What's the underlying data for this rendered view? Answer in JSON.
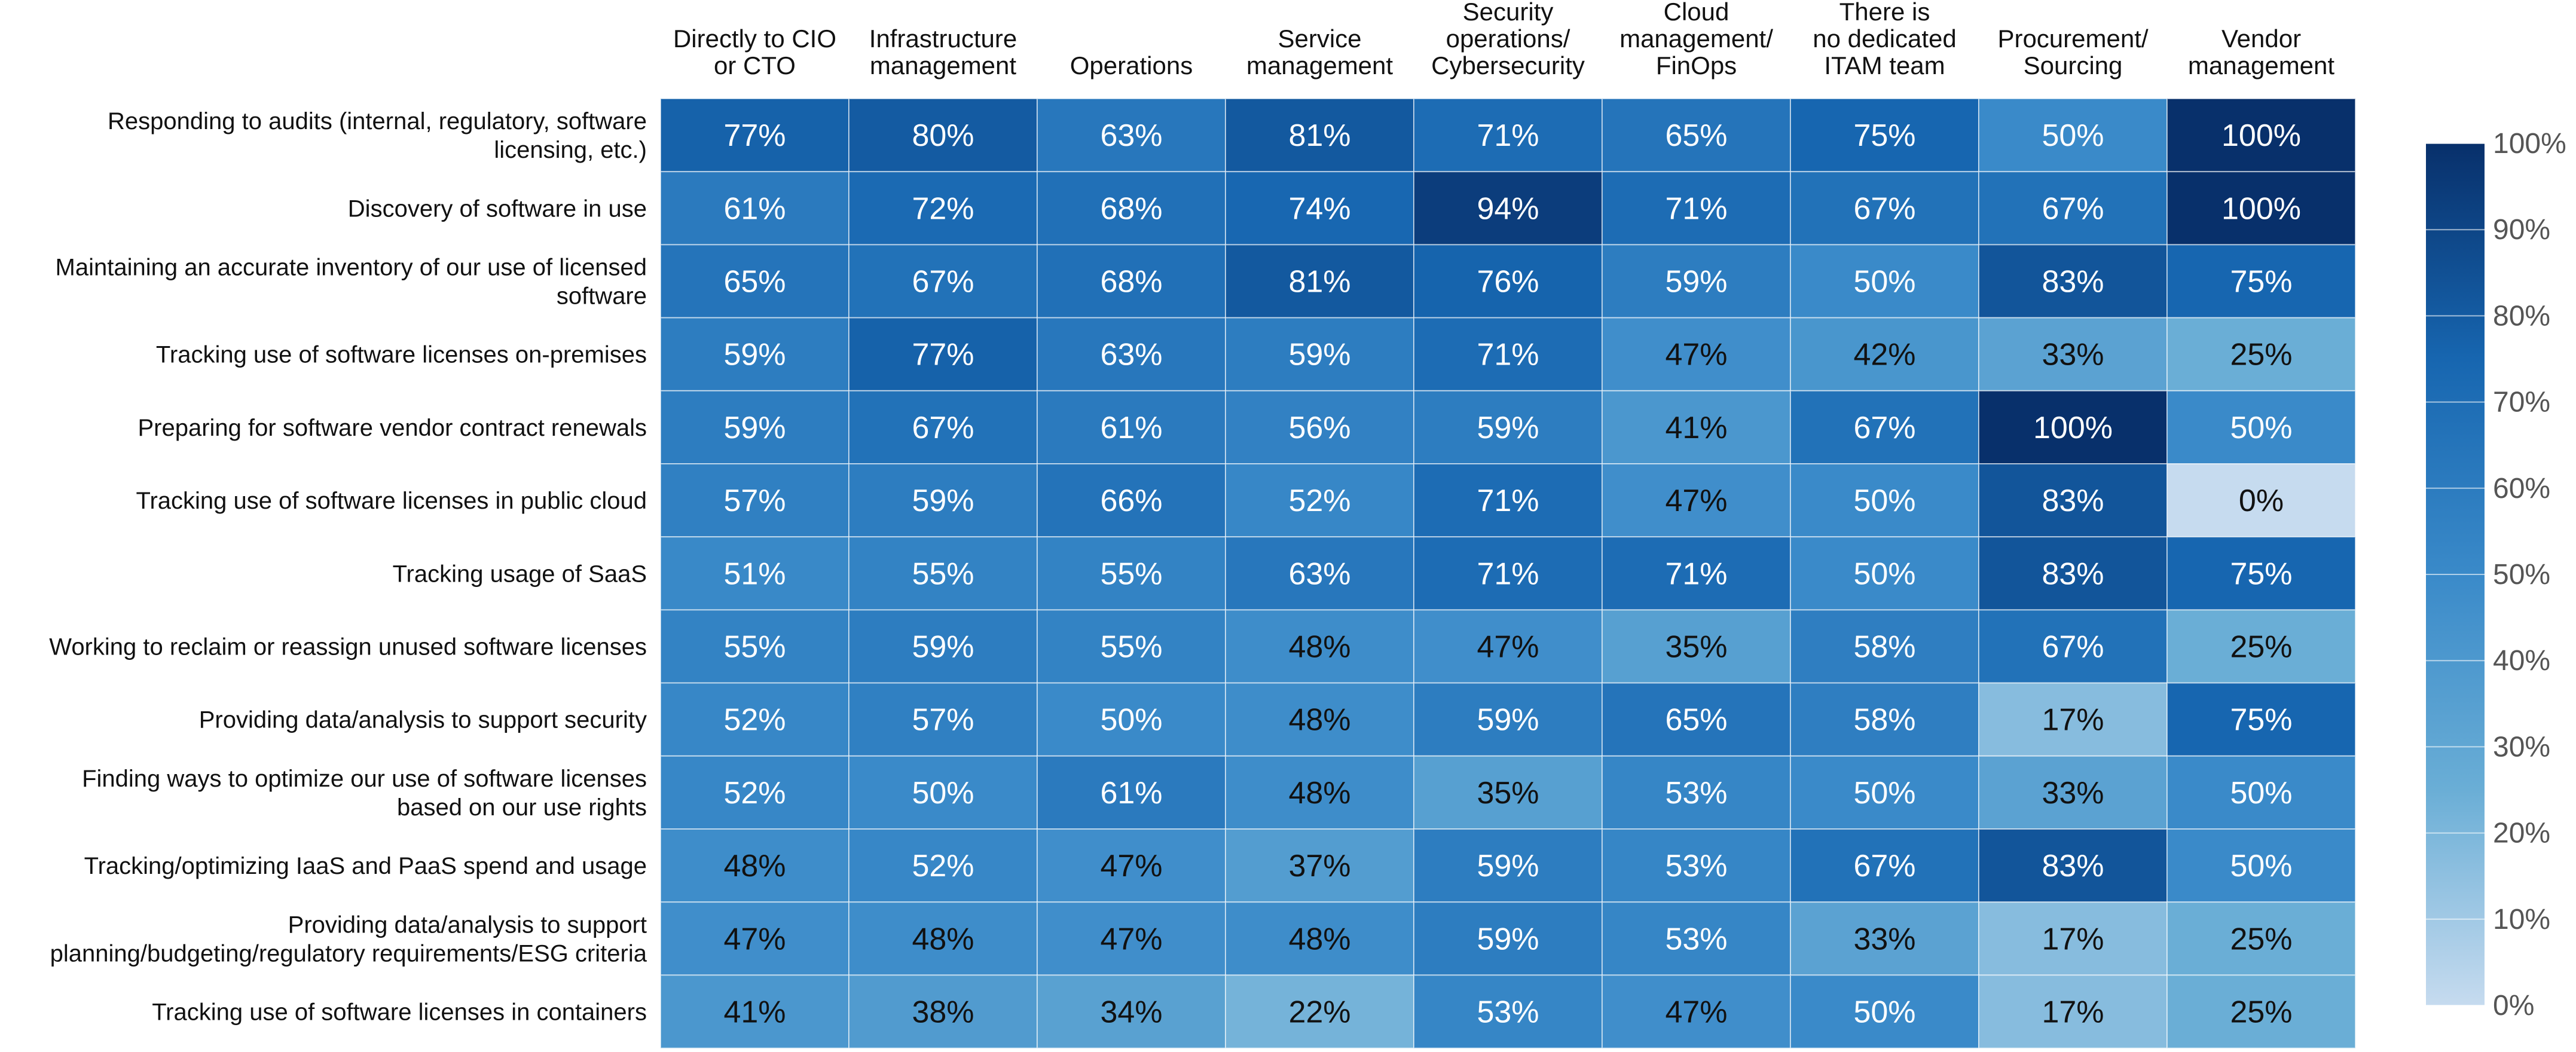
{
  "chart_data": {
    "type": "heatmap",
    "title": "",
    "columns": [
      "Directly to CIO or CTO",
      "Infrastructure management",
      "Operations",
      "Service management",
      "Security operations/ Cybersecurity",
      "Cloud management/ FinOps",
      "There is no dedicated ITAM team",
      "Procurement/ Sourcing",
      "Vendor management"
    ],
    "column_label_lines": [
      [
        "Directly to CIO",
        "or CTO"
      ],
      [
        "Infrastructure",
        "management"
      ],
      [
        "Operations"
      ],
      [
        "Service",
        "management"
      ],
      [
        "Security",
        "operations/",
        "Cybersecurity"
      ],
      [
        "Cloud",
        "management/",
        "FinOps"
      ],
      [
        "There is",
        "no dedicated",
        "ITAM team"
      ],
      [
        "Procurement/",
        "Sourcing"
      ],
      [
        "Vendor",
        "management"
      ]
    ],
    "rows": [
      "Responding to audits (internal, regulatory, software licensing, etc.)",
      "Discovery of software in use",
      "Maintaining an accurate inventory of our use of licensed software",
      "Tracking use of software licenses on-premises",
      "Preparing for software vendor contract renewals",
      "Tracking use of software licenses in public cloud",
      "Tracking usage of SaaS",
      "Working to reclaim or reassign unused software licenses",
      "Providing data/analysis to support security",
      "Finding ways to optimize our use of software licenses based on our use rights",
      "Tracking/optimizing IaaS and PaaS spend and usage",
      "Providing data/analysis to support planning/budgeting/regulatory requirements/ESG criteria",
      "Tracking use of software licenses in containers"
    ],
    "row_label_lines": [
      [
        "Responding to audits (internal, regulatory, software",
        "licensing, etc.)"
      ],
      [
        "Discovery of software in use"
      ],
      [
        "Maintaining an accurate inventory of our use of licensed",
        "software"
      ],
      [
        "Tracking use of software licenses on-premises"
      ],
      [
        "Preparing for software vendor contract renewals"
      ],
      [
        "Tracking use of software licenses in public cloud"
      ],
      [
        "Tracking usage of SaaS"
      ],
      [
        "Working to reclaim or reassign unused software licenses"
      ],
      [
        "Providing data/analysis to support security"
      ],
      [
        "Finding ways to optimize our use of software licenses",
        "based on our use rights"
      ],
      [
        "Tracking/optimizing IaaS and PaaS spend and usage"
      ],
      [
        "Providing data/analysis to support",
        "planning/budgeting/regulatory requirements/ESG criteria"
      ],
      [
        "Tracking use of software licenses in containers"
      ]
    ],
    "values": [
      [
        77,
        80,
        63,
        81,
        71,
        65,
        75,
        50,
        100
      ],
      [
        61,
        72,
        68,
        74,
        94,
        71,
        67,
        67,
        100
      ],
      [
        65,
        67,
        68,
        81,
        76,
        59,
        50,
        83,
        75
      ],
      [
        59,
        77,
        63,
        59,
        71,
        47,
        42,
        33,
        25
      ],
      [
        59,
        67,
        61,
        56,
        59,
        41,
        67,
        100,
        50
      ],
      [
        57,
        59,
        66,
        52,
        71,
        47,
        50,
        83,
        0
      ],
      [
        51,
        55,
        55,
        63,
        71,
        71,
        50,
        83,
        75
      ],
      [
        55,
        59,
        55,
        48,
        47,
        35,
        58,
        67,
        25
      ],
      [
        52,
        57,
        50,
        48,
        59,
        65,
        58,
        17,
        75
      ],
      [
        52,
        50,
        61,
        48,
        35,
        53,
        50,
        33,
        50
      ],
      [
        48,
        52,
        47,
        37,
        59,
        53,
        67,
        83,
        50
      ],
      [
        47,
        48,
        47,
        48,
        59,
        53,
        33,
        17,
        25
      ],
      [
        41,
        38,
        34,
        22,
        53,
        47,
        50,
        17,
        25
      ]
    ],
    "value_suffix": "%",
    "colorbar": {
      "range": [
        0,
        100
      ],
      "ticks": [
        0,
        10,
        20,
        30,
        40,
        50,
        60,
        70,
        80,
        90,
        100
      ],
      "tick_suffix": "%",
      "color_low": "#c6dbef",
      "color_high": "#08306b"
    }
  }
}
